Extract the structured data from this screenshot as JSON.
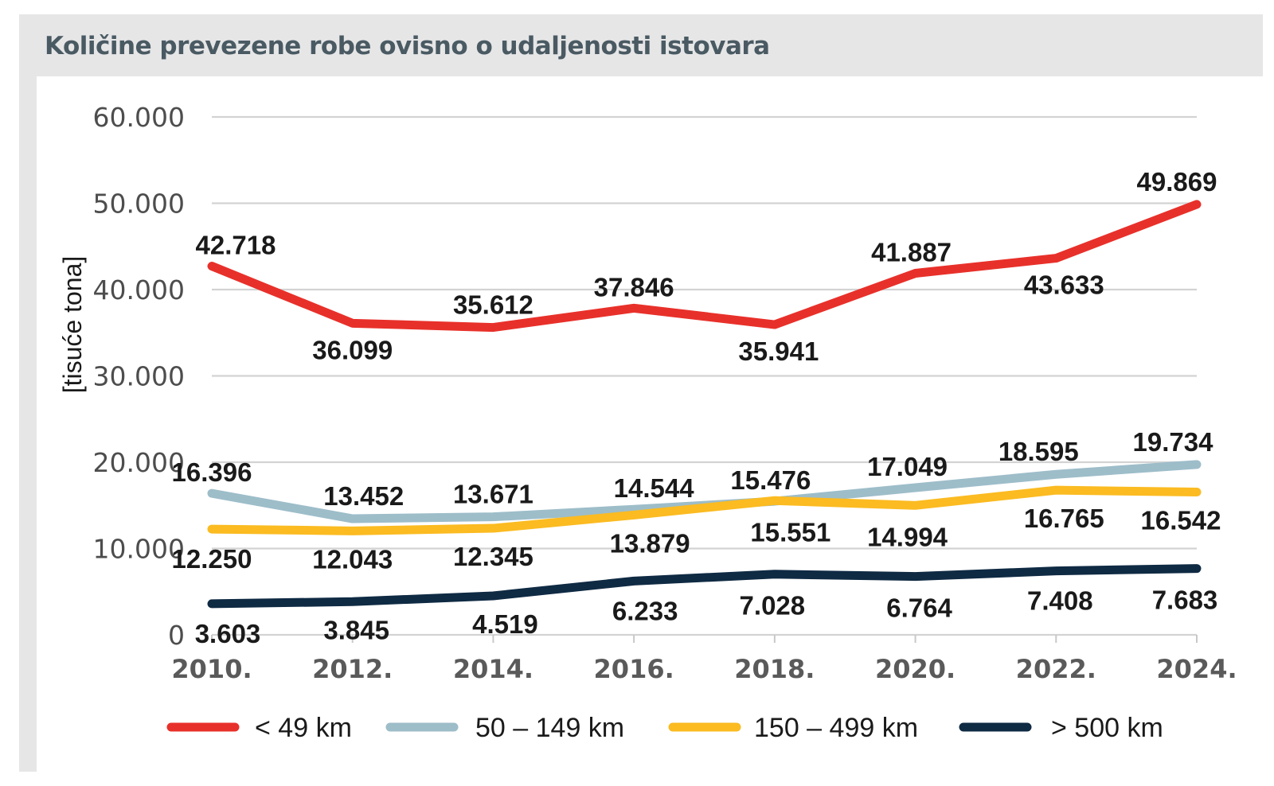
{
  "chart_data": {
    "type": "line",
    "title": "Količine prevezene robe ovisno o udaljenosti istovara",
    "ylabel": "[tisuće tona]",
    "xlabel": "",
    "ylim": [
      0,
      60000
    ],
    "yticks": [
      0,
      10000,
      20000,
      30000,
      40000,
      50000,
      60000
    ],
    "ytick_labels": [
      "0",
      "10.000",
      "20.000",
      "30.000",
      "40.000",
      "50.000",
      "60.000"
    ],
    "categories": [
      "2010.",
      "2012.",
      "2014.",
      "2016.",
      "2018.",
      "2020.",
      "2022.",
      "2024."
    ],
    "grid": "horizontal",
    "legend_position": "bottom",
    "series": [
      {
        "name": "< 49 km",
        "color": "#e8302a",
        "values": [
          42718,
          36099,
          35612,
          37846,
          35941,
          41887,
          43633,
          49869
        ],
        "labels": [
          "42.718",
          "36.099",
          "35.612",
          "37.846",
          "35.941",
          "41.887",
          "43.633",
          "49.869"
        ]
      },
      {
        "name": "50 – 149 km",
        "color": "#9dbdc9",
        "values": [
          16396,
          13452,
          13671,
          14544,
          15476,
          17049,
          18595,
          19734
        ],
        "labels": [
          "16.396",
          "13.452",
          "13.671",
          "14.544",
          "15.476",
          "17.049",
          "18.595",
          "19.734"
        ]
      },
      {
        "name": "150 – 499 km",
        "color": "#fbbb21",
        "values": [
          12250,
          12043,
          12345,
          13879,
          15551,
          14994,
          16765,
          16542
        ],
        "labels": [
          "12.250",
          "12.043",
          "12.345",
          "13.879",
          "15.551",
          "14.994",
          "16.765",
          "16.542"
        ]
      },
      {
        "name": "> 500 km",
        "color": "#0f2a43",
        "values": [
          3603,
          3845,
          4519,
          6233,
          7028,
          6764,
          7408,
          7683
        ],
        "labels": [
          "3.603",
          "3.845",
          "4.519",
          "6.233",
          "7.028",
          "6.764",
          "7.408",
          "7.683"
        ]
      }
    ]
  }
}
